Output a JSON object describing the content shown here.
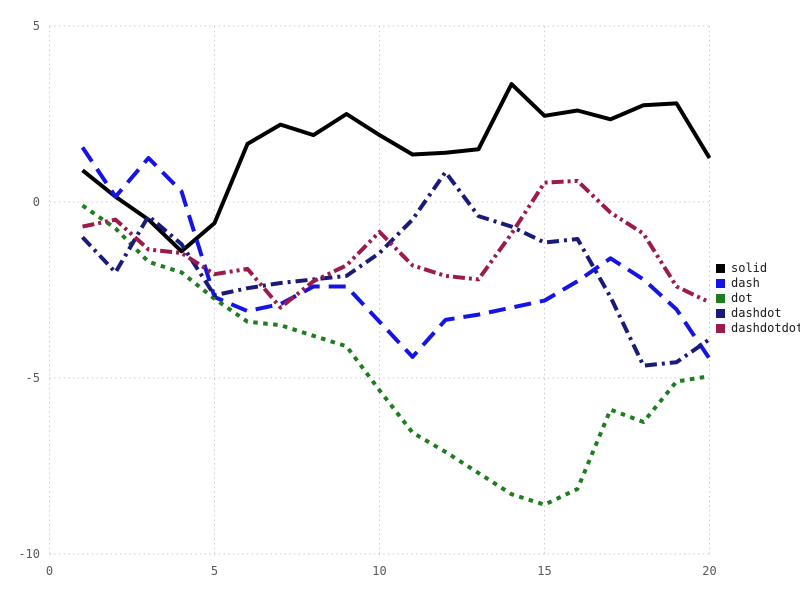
{
  "chart_data": {
    "type": "line",
    "title": "",
    "xlabel": "",
    "ylabel": "",
    "xlim": [
      0,
      20
    ],
    "ylim": [
      -10,
      5
    ],
    "xticks": [
      0,
      5,
      10,
      15,
      20
    ],
    "yticks": [
      -10,
      -5,
      0,
      5
    ],
    "grid": true,
    "grid_color": "#cdcdd6",
    "tick_label_color": "#595959",
    "legend_position": "right",
    "x": [
      1,
      2,
      3,
      4,
      5,
      6,
      7,
      8,
      9,
      10,
      11,
      12,
      13,
      14,
      15,
      16,
      17,
      18,
      19,
      20
    ],
    "series": [
      {
        "name": "solid",
        "color": "#000000",
        "dash": "solid",
        "values": [
          0.9,
          0.15,
          -0.5,
          -1.4,
          -0.6,
          1.65,
          2.2,
          1.9,
          2.5,
          1.9,
          1.35,
          1.4,
          1.5,
          3.35,
          2.45,
          2.6,
          2.35,
          2.75,
          2.8,
          1.25
        ]
      },
      {
        "name": "dash",
        "color": "#1414e6",
        "dash": "dash",
        "values": [
          1.55,
          0.15,
          1.25,
          0.3,
          -2.7,
          -3.1,
          -2.9,
          -2.4,
          -2.4,
          -3.4,
          -4.4,
          -3.35,
          -3.2,
          -3.0,
          -2.8,
          -2.25,
          -1.6,
          -2.2,
          -3.05,
          -4.45
        ]
      },
      {
        "name": "dot",
        "color": "#1e7d1e",
        "dash": "dot",
        "values": [
          -0.1,
          -0.75,
          -1.7,
          -2.0,
          -2.75,
          -3.4,
          -3.5,
          -3.8,
          -4.1,
          -5.35,
          -6.55,
          -7.1,
          -7.7,
          -8.3,
          -8.6,
          -8.15,
          -5.9,
          -6.25,
          -5.1,
          -4.95
        ]
      },
      {
        "name": "dashdot",
        "color": "#1a1a78",
        "dash": "dashdot",
        "values": [
          -1.0,
          -2.0,
          -0.4,
          -1.2,
          -2.65,
          -2.45,
          -2.3,
          -2.2,
          -2.1,
          -1.45,
          -0.5,
          0.85,
          -0.4,
          -0.7,
          -1.15,
          -1.05,
          -2.7,
          -4.65,
          -4.55,
          -3.9
        ]
      },
      {
        "name": "dashdotdot",
        "color": "#9b1b4d",
        "dash": "dashdotdot",
        "values": [
          -0.7,
          -0.5,
          -1.35,
          -1.45,
          -2.05,
          -1.9,
          -3.0,
          -2.25,
          -1.8,
          -0.85,
          -1.8,
          -2.1,
          -2.2,
          -0.9,
          0.55,
          0.6,
          -0.3,
          -0.9,
          -2.4,
          -2.85
        ]
      }
    ]
  },
  "legend": {
    "items": [
      {
        "label": "solid"
      },
      {
        "label": "dash"
      },
      {
        "label": "dot"
      },
      {
        "label": "dashdot"
      },
      {
        "label": "dashdotdot"
      }
    ]
  }
}
